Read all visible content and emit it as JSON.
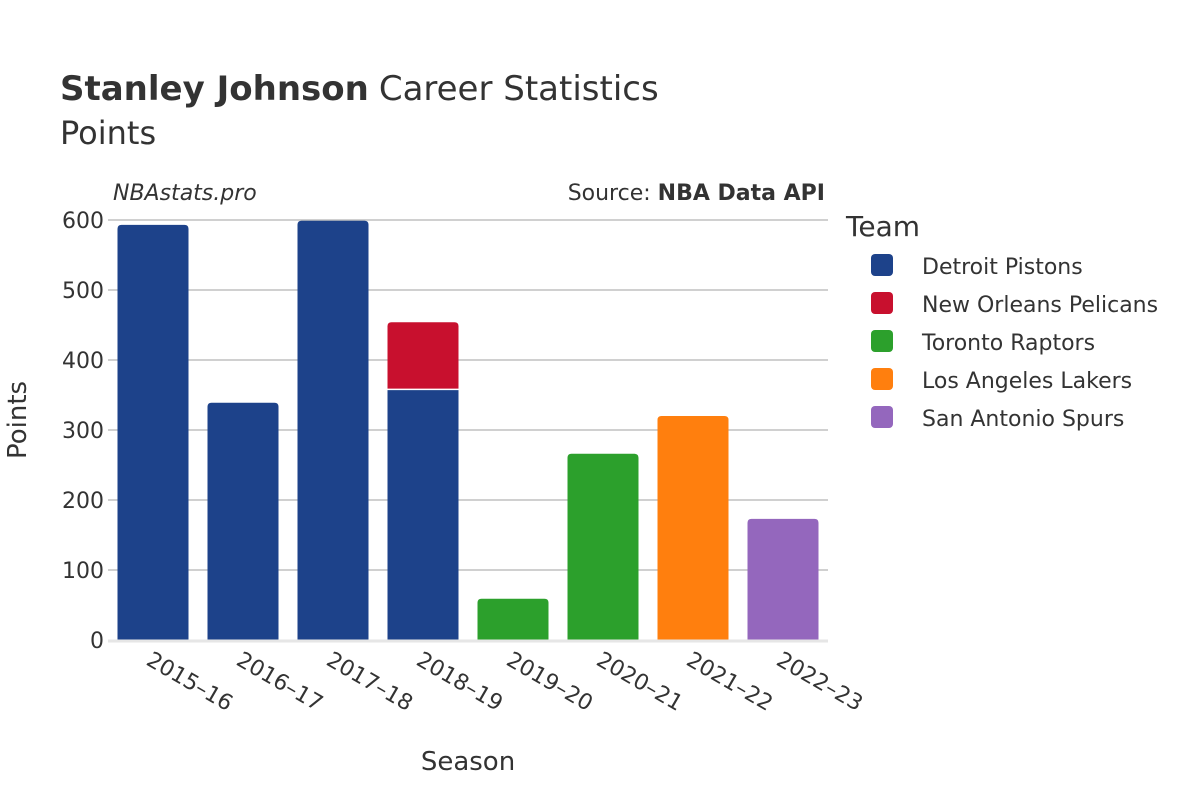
{
  "header": {
    "player_name": "Stanley Johnson",
    "title_suffix": "Career Statistics",
    "subtitle": "Points"
  },
  "credits": {
    "site": "NBAstats.pro",
    "source_prefix": "Source: ",
    "source_name": "NBA Data API"
  },
  "legend": {
    "title": "Team"
  },
  "chart_data": {
    "type": "bar",
    "stacked": true,
    "title": "Stanley Johnson Career Statistics",
    "subtitle": "Points",
    "xlabel": "Season",
    "ylabel": "Points",
    "ylim": [
      0,
      600
    ],
    "yticks": [
      0,
      100,
      200,
      300,
      400,
      500,
      600
    ],
    "grid": true,
    "legend_position": "right",
    "categories": [
      "2015–16",
      "2016–17",
      "2017–18",
      "2018–19",
      "2019–20",
      "2020–21",
      "2021–22",
      "2022–23"
    ],
    "series": [
      {
        "name": "Detroit Pistons",
        "color": "#1d428a",
        "values": [
          593,
          339,
          599,
          358,
          0,
          0,
          0,
          0
        ]
      },
      {
        "name": "New Orleans Pelicans",
        "color": "#c8102e",
        "values": [
          0,
          0,
          0,
          96,
          0,
          0,
          0,
          0
        ]
      },
      {
        "name": "Toronto Raptors",
        "color": "#2ca02c",
        "values": [
          0,
          0,
          0,
          0,
          59,
          266,
          0,
          0
        ]
      },
      {
        "name": "Los Angeles Lakers",
        "color": "#ff7f0e",
        "values": [
          0,
          0,
          0,
          0,
          0,
          0,
          320,
          0
        ]
      },
      {
        "name": "San Antonio Spurs",
        "color": "#9467bd",
        "values": [
          0,
          0,
          0,
          0,
          0,
          0,
          0,
          173
        ]
      }
    ]
  }
}
